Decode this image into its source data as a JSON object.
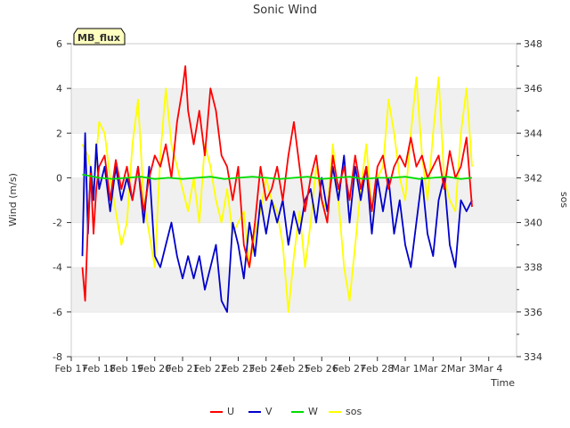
{
  "chart_data": {
    "type": "line",
    "title": "Sonic Wind",
    "xlabel": "Time",
    "ylabel": "Wind (m/s)",
    "y2label": "sos",
    "site_label": "MB_flux",
    "ylim": [
      -8,
      6
    ],
    "y2lim": [
      334,
      348
    ],
    "xlim": [
      17,
      33
    ],
    "yticks": [
      -8,
      -6,
      -4,
      -2,
      0,
      2,
      4,
      6
    ],
    "y2ticks": [
      334,
      336,
      338,
      340,
      342,
      344,
      346,
      348
    ],
    "xticks": [
      {
        "x": 17,
        "label": "Feb 17"
      },
      {
        "x": 18,
        "label": "Feb 18"
      },
      {
        "x": 19,
        "label": "Feb 19"
      },
      {
        "x": 20,
        "label": "Feb 20"
      },
      {
        "x": 21,
        "label": "Feb 21"
      },
      {
        "x": 22,
        "label": "Feb 22"
      },
      {
        "x": 23,
        "label": "Feb 23"
      },
      {
        "x": 24,
        "label": "Feb 24"
      },
      {
        "x": 25,
        "label": "Feb 25"
      },
      {
        "x": 26,
        "label": "Feb 26"
      },
      {
        "x": 27,
        "label": "Feb 27"
      },
      {
        "x": 28,
        "label": "Feb 28"
      },
      {
        "x": 29,
        "label": "Mar 1"
      },
      {
        "x": 30,
        "label": "Mar 2"
      },
      {
        "x": 31,
        "label": "Mar 3"
      },
      {
        "x": 32,
        "label": "Mar 4"
      }
    ],
    "grid": "horizontal bands",
    "legend_position": "bottom",
    "series": [
      {
        "name": "U",
        "color": "#ff0000",
        "axis": "left",
        "x": [
          17.4,
          17.5,
          17.6,
          17.7,
          17.8,
          17.9,
          18.0,
          18.2,
          18.4,
          18.6,
          18.8,
          19.0,
          19.2,
          19.4,
          19.6,
          19.8,
          20.0,
          20.2,
          20.4,
          20.6,
          20.8,
          21.0,
          21.1,
          21.2,
          21.4,
          21.6,
          21.8,
          22.0,
          22.2,
          22.4,
          22.6,
          22.8,
          23.0,
          23.2,
          23.4,
          23.6,
          23.8,
          24.0,
          24.2,
          24.4,
          24.6,
          24.8,
          25.0,
          25.2,
          25.4,
          25.6,
          25.8,
          26.0,
          26.2,
          26.4,
          26.6,
          26.8,
          27.0,
          27.2,
          27.4,
          27.6,
          27.8,
          28.0,
          28.2,
          28.4,
          28.6,
          28.8,
          29.0,
          29.2,
          29.4,
          29.6,
          29.8,
          30.0,
          30.2,
          30.4,
          30.6,
          30.8,
          31.0,
          31.2,
          31.4
        ],
        "values": [
          -4.0,
          -5.5,
          -2.0,
          0.2,
          -2.5,
          -0.5,
          0.5,
          1.0,
          -1.0,
          0.8,
          -0.5,
          0.5,
          -1.0,
          0.5,
          -1.5,
          0.0,
          1.0,
          0.5,
          1.5,
          0.0,
          2.5,
          4.0,
          5.0,
          3.0,
          1.5,
          3.0,
          1.0,
          4.0,
          3.0,
          1.0,
          0.5,
          -1.0,
          0.5,
          -3.0,
          -4.0,
          -2.0,
          0.5,
          -1.0,
          -0.5,
          0.5,
          -1.0,
          1.0,
          2.5,
          0.5,
          -1.5,
          0.0,
          1.0,
          -1.0,
          -2.0,
          1.0,
          -0.5,
          0.5,
          -1.0,
          1.0,
          -0.5,
          0.5,
          -1.5,
          0.5,
          1.0,
          -0.5,
          0.5,
          1.0,
          0.5,
          1.8,
          0.5,
          1.0,
          0.0,
          0.5,
          1.0,
          -0.5,
          1.2,
          0.0,
          0.5,
          1.8,
          -1.3
        ]
      },
      {
        "name": "V",
        "color": "#0000cc",
        "axis": "left",
        "x": [
          17.4,
          17.5,
          17.6,
          17.7,
          17.8,
          17.9,
          18.0,
          18.2,
          18.4,
          18.6,
          18.8,
          19.0,
          19.2,
          19.4,
          19.6,
          19.8,
          20.0,
          20.2,
          20.4,
          20.6,
          20.8,
          21.0,
          21.2,
          21.4,
          21.6,
          21.8,
          22.0,
          22.2,
          22.4,
          22.6,
          22.8,
          23.0,
          23.2,
          23.4,
          23.6,
          23.8,
          24.0,
          24.2,
          24.4,
          24.6,
          24.8,
          25.0,
          25.2,
          25.4,
          25.6,
          25.8,
          26.0,
          26.2,
          26.4,
          26.6,
          26.8,
          27.0,
          27.2,
          27.4,
          27.6,
          27.8,
          28.0,
          28.2,
          28.4,
          28.6,
          28.8,
          29.0,
          29.2,
          29.4,
          29.6,
          29.8,
          30.0,
          30.2,
          30.4,
          30.6,
          30.8,
          31.0,
          31.2,
          31.4
        ],
        "values": [
          -3.5,
          2.0,
          -2.5,
          0.5,
          -1.0,
          1.5,
          -0.5,
          0.5,
          -1.5,
          0.5,
          -1.0,
          0.0,
          -1.0,
          0.5,
          -2.0,
          0.5,
          -3.5,
          -4.0,
          -3.0,
          -2.0,
          -3.5,
          -4.5,
          -3.5,
          -4.5,
          -3.5,
          -5.0,
          -4.0,
          -3.0,
          -5.5,
          -6.0,
          -2.0,
          -3.0,
          -4.5,
          -2.0,
          -3.5,
          -1.0,
          -2.5,
          -1.0,
          -2.0,
          -1.0,
          -3.0,
          -1.5,
          -2.5,
          -1.0,
          -0.5,
          -2.0,
          0.0,
          -1.5,
          0.5,
          -1.0,
          1.0,
          -2.0,
          0.5,
          -1.0,
          0.5,
          -2.5,
          0.0,
          -1.5,
          0.0,
          -2.5,
          -1.0,
          -3.0,
          -4.0,
          -2.0,
          0.0,
          -2.5,
          -3.5,
          -1.0,
          0.0,
          -3.0,
          -4.0,
          -1.0,
          -1.5,
          -1.0
        ]
      },
      {
        "name": "W",
        "color": "#00dd00",
        "axis": "left",
        "x": [
          17.4,
          18.0,
          18.5,
          19.0,
          19.5,
          20.0,
          20.5,
          21.0,
          21.5,
          22.0,
          22.5,
          23.0,
          23.5,
          24.0,
          24.5,
          25.0,
          25.5,
          26.0,
          26.5,
          27.0,
          27.5,
          28.0,
          28.5,
          29.0,
          29.5,
          30.0,
          30.5,
          31.0,
          31.4
        ],
        "values": [
          0.15,
          0.0,
          -0.05,
          0.0,
          0.05,
          -0.05,
          0.0,
          -0.05,
          0.0,
          0.05,
          -0.05,
          0.0,
          0.05,
          0.0,
          -0.05,
          0.0,
          0.05,
          -0.05,
          0.0,
          0.05,
          -0.05,
          0.0,
          0.0,
          0.05,
          -0.05,
          0.0,
          0.05,
          -0.05,
          0.0
        ]
      },
      {
        "name": "sos",
        "color": "#ffff00",
        "axis": "right",
        "x": [
          17.4,
          17.6,
          17.8,
          18.0,
          18.2,
          18.4,
          18.6,
          18.8,
          19.0,
          19.2,
          19.4,
          19.6,
          19.8,
          20.0,
          20.2,
          20.4,
          20.6,
          20.8,
          21.0,
          21.2,
          21.4,
          21.6,
          21.8,
          22.0,
          22.2,
          22.4,
          22.6,
          22.8,
          23.0,
          23.2,
          23.4,
          23.6,
          23.8,
          24.0,
          24.2,
          24.4,
          24.6,
          24.8,
          25.0,
          25.2,
          25.4,
          25.6,
          25.8,
          26.0,
          26.2,
          26.4,
          26.6,
          26.8,
          27.0,
          27.2,
          27.4,
          27.6,
          27.8,
          28.0,
          28.2,
          28.4,
          28.6,
          28.8,
          29.0,
          29.2,
          29.4,
          29.6,
          29.8,
          30.0,
          30.2,
          30.4,
          30.6,
          30.8,
          31.0,
          31.2,
          31.4
        ],
        "values": [
          343.5,
          343.0,
          341.5,
          344.5,
          344.0,
          342.0,
          340.5,
          339.0,
          340.0,
          343.5,
          345.5,
          341.0,
          339.5,
          338.0,
          343.0,
          346.0,
          343.5,
          342.5,
          341.5,
          340.5,
          342.0,
          340.0,
          343.5,
          342.5,
          341.0,
          340.0,
          341.5,
          339.5,
          340.0,
          340.5,
          338.0,
          339.5,
          340.5,
          342.0,
          341.0,
          340.5,
          339.0,
          336.0,
          338.5,
          340.5,
          338.0,
          340.0,
          342.5,
          341.0,
          340.5,
          343.5,
          341.0,
          338.0,
          336.5,
          339.0,
          341.5,
          343.5,
          340.5,
          342.0,
          342.5,
          345.5,
          344.0,
          342.0,
          341.0,
          344.0,
          346.5,
          343.0,
          341.0,
          344.0,
          346.5,
          342.0,
          341.0,
          340.5,
          344.0,
          346.0,
          342.5
        ]
      }
    ]
  }
}
